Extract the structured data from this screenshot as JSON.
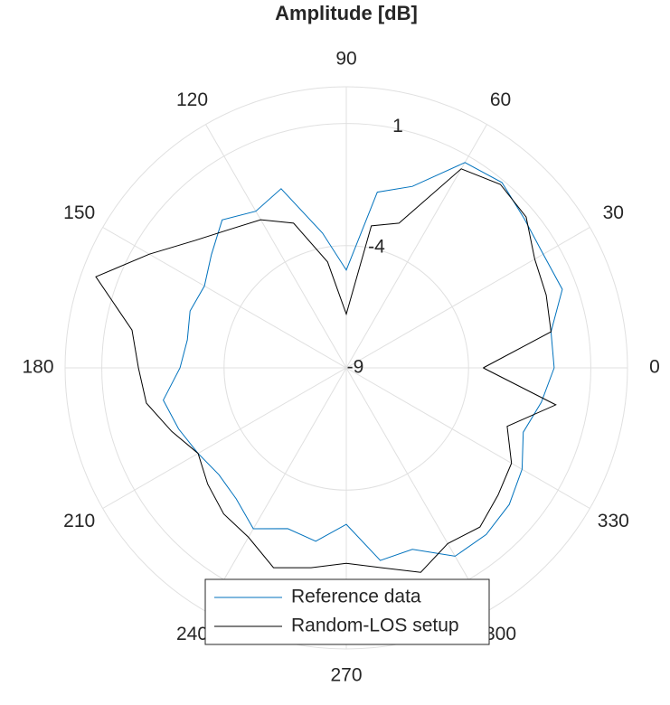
{
  "chart_data": {
    "type": "polar",
    "title": "Amplitude [dB]",
    "x": [
      0,
      10,
      20,
      30,
      40,
      50,
      60,
      70,
      80,
      90,
      100,
      110,
      120,
      130,
      140,
      150,
      160,
      170,
      180,
      190,
      200,
      210,
      220,
      230,
      240,
      250,
      260,
      270,
      280,
      290,
      300,
      310,
      320,
      330,
      340,
      350,
      360
    ],
    "series": [
      {
        "name": "Reference data",
        "color": "#0072bd",
        "values": [
          -0.5,
          -0.5,
          0.4,
          0.3,
          0.5,
          0.9,
          0.7,
          -1.1,
          -1.7,
          -5,
          -3.4,
          -1.2,
          -1.6,
          -1.1,
          -1.8,
          -2.3,
          -2.2,
          -2.4,
          -2.2,
          -1.4,
          -1.7,
          -2,
          -2.2,
          -2,
          -1.4,
          -2,
          -1.8,
          -2.6,
          -1,
          -1.1,
          -0.1,
          -0.1,
          -0.3,
          -0.7,
          -1.3,
          -0.9,
          -0.5
        ]
      },
      {
        "name": "Random-LOS setup",
        "color": "#000000",
        "values": [
          -3.4,
          -0.5,
          -0.3,
          -0.1,
          0.6,
          0.8,
          0.4,
          -2.7,
          -3.1,
          -6.8,
          -4.6,
          -2.7,
          -2,
          -1.6,
          -0.9,
          0.3,
          1.9,
          -0.1,
          -0.5,
          -0.7,
          -1.4,
          -2,
          -1.6,
          -1.2,
          -1,
          -0.3,
          -0.7,
          -1,
          -0.7,
          -0.1,
          -0.7,
          -0.5,
          -0.9,
          -1.2,
          -2,
          -0.3,
          -3.4
        ]
      }
    ],
    "xticks": [
      0,
      30,
      60,
      90,
      120,
      150,
      180,
      210,
      240,
      270,
      300,
      330
    ],
    "ylim": [
      -9,
      2.5
    ],
    "yticks": [
      -9,
      -4,
      1
    ],
    "grid": true,
    "legend": "south"
  }
}
